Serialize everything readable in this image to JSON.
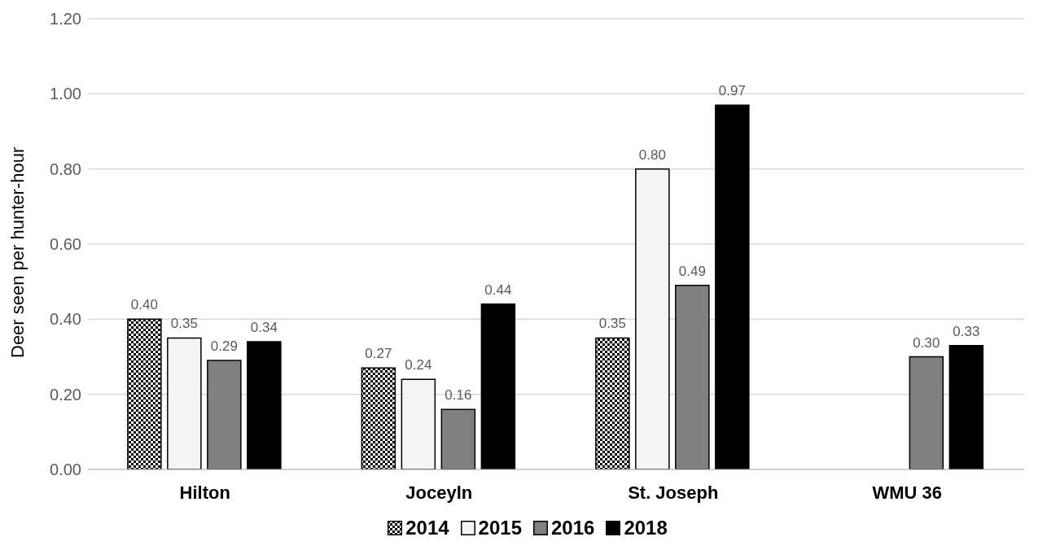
{
  "chart_data": {
    "type": "bar",
    "ylabel": "Deer seen per hunter-hour",
    "categories": [
      "Hilton",
      "Joceyln",
      "St. Joseph",
      "WMU 36"
    ],
    "series": [
      {
        "name": "2014",
        "color": "#000000",
        "values": [
          0.4,
          0.27,
          0.35,
          null
        ],
        "value_labels": [
          "0.40",
          "0.27",
          "0.35",
          null
        ]
      },
      {
        "name": "2015",
        "color": "#f4f4f4",
        "values": [
          0.35,
          0.24,
          0.8,
          null
        ],
        "value_labels": [
          "0.35",
          "0.24",
          "0.80",
          null
        ]
      },
      {
        "name": "2016",
        "color": "#808080",
        "values": [
          0.29,
          0.16,
          0.49,
          0.3
        ],
        "value_labels": [
          "0.29",
          "0.16",
          "0.49",
          "0.30"
        ]
      },
      {
        "name": "2018",
        "color": "#000000",
        "values": [
          0.34,
          0.44,
          0.97,
          0.33
        ],
        "value_labels": [
          "0.34",
          "0.44",
          "0.97",
          "0.33"
        ]
      }
    ],
    "ylim": [
      0,
      1.2
    ],
    "yticks": [
      {
        "value": 0,
        "label": "0.00"
      },
      {
        "value": 0.2,
        "label": "0.20"
      },
      {
        "value": 0.4,
        "label": "0.40"
      },
      {
        "value": 0.6,
        "label": "0.60"
      },
      {
        "value": 0.8,
        "label": "0.80"
      },
      {
        "value": 1.0,
        "label": "1.00"
      },
      {
        "value": 1.2,
        "label": "1.20"
      }
    ],
    "grid": "y",
    "legend": "bottom"
  }
}
